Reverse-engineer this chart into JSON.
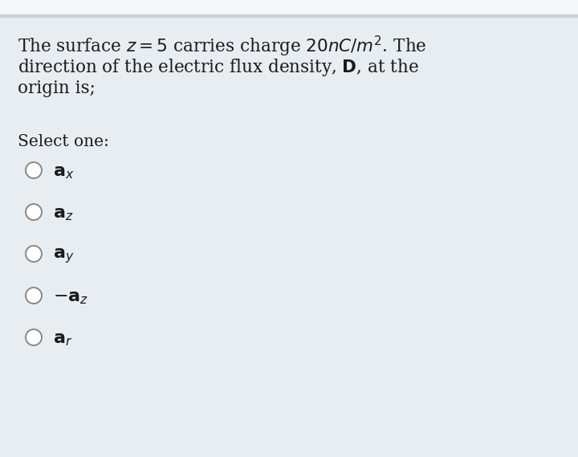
{
  "background_color": "#e8edf2",
  "top_white_color": "#f5f7fa",
  "top_bar_color": "#c8d0da",
  "text_color": "#1a1a1a",
  "question_line1": "The surface $z = 5$ carries charge $20nC/m^2$. The",
  "question_line2": "direction of the electric flux density, $\\mathbf{D}$, at the",
  "question_line3": "origin is;",
  "select_text": "Select one:",
  "options": [
    "$\\mathbf{a}_x$",
    "$\\mathbf{a}_z$",
    "$\\mathbf{a}_y$",
    "$-\\mathbf{a}_z$",
    "$\\mathbf{a}_r$"
  ],
  "circle_color": "#888888",
  "font_size_question": 15.5,
  "font_size_options": 16,
  "font_size_select": 14.5,
  "figwidth": 7.2,
  "figheight": 5.69,
  "dpi": 100
}
